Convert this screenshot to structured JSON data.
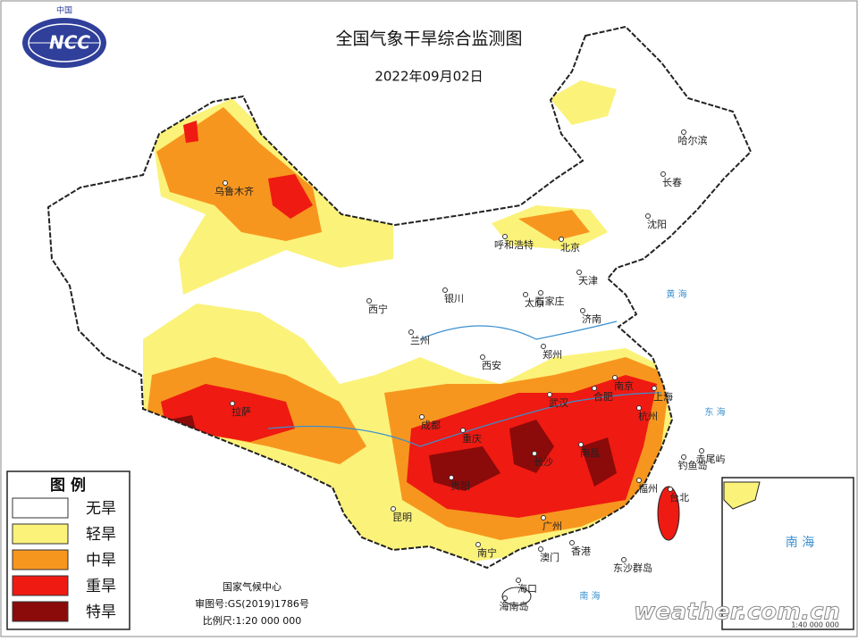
{
  "header": {
    "logo_top": "中国",
    "logo": "NCC",
    "title": "全国气象干旱综合监测图",
    "date": "2022年09月02日"
  },
  "legend": {
    "title": "图 例",
    "items": [
      {
        "label": "无旱",
        "color": "#ffffff"
      },
      {
        "label": "轻旱",
        "color": "#fbf27a"
      },
      {
        "label": "中旱",
        "color": "#f7961e"
      },
      {
        "label": "重旱",
        "color": "#ef1a12"
      },
      {
        "label": "特旱",
        "color": "#8b0a0a"
      }
    ]
  },
  "credits": {
    "agency": "国家气候中心",
    "approval": "审图号:GS(2019)1786号",
    "scale": "比例尺:1:20 000 000"
  },
  "cities": [
    "哈尔滨",
    "长春",
    "沈阳",
    "呼和浩特",
    "北京",
    "天津",
    "石家庄",
    "太原",
    "济南",
    "银川",
    "西宁",
    "兰州",
    "西安",
    "郑州",
    "乌鲁木齐",
    "拉萨",
    "成都",
    "重庆",
    "武汉",
    "南京",
    "合肥",
    "上海",
    "杭州",
    "长沙",
    "南昌",
    "贵阳",
    "福州",
    "台北",
    "昆明",
    "广州",
    "南宁",
    "澳门",
    "香港",
    "海口",
    "海南岛",
    "东沙群岛",
    "钓鱼岛",
    "赤尾屿"
  ],
  "seas": [
    "黄 海",
    "东 海",
    "南 海"
  ],
  "inset": {
    "label": "南 海",
    "scale": "1:40 000 000"
  },
  "watermark": "weather.com.cn"
}
